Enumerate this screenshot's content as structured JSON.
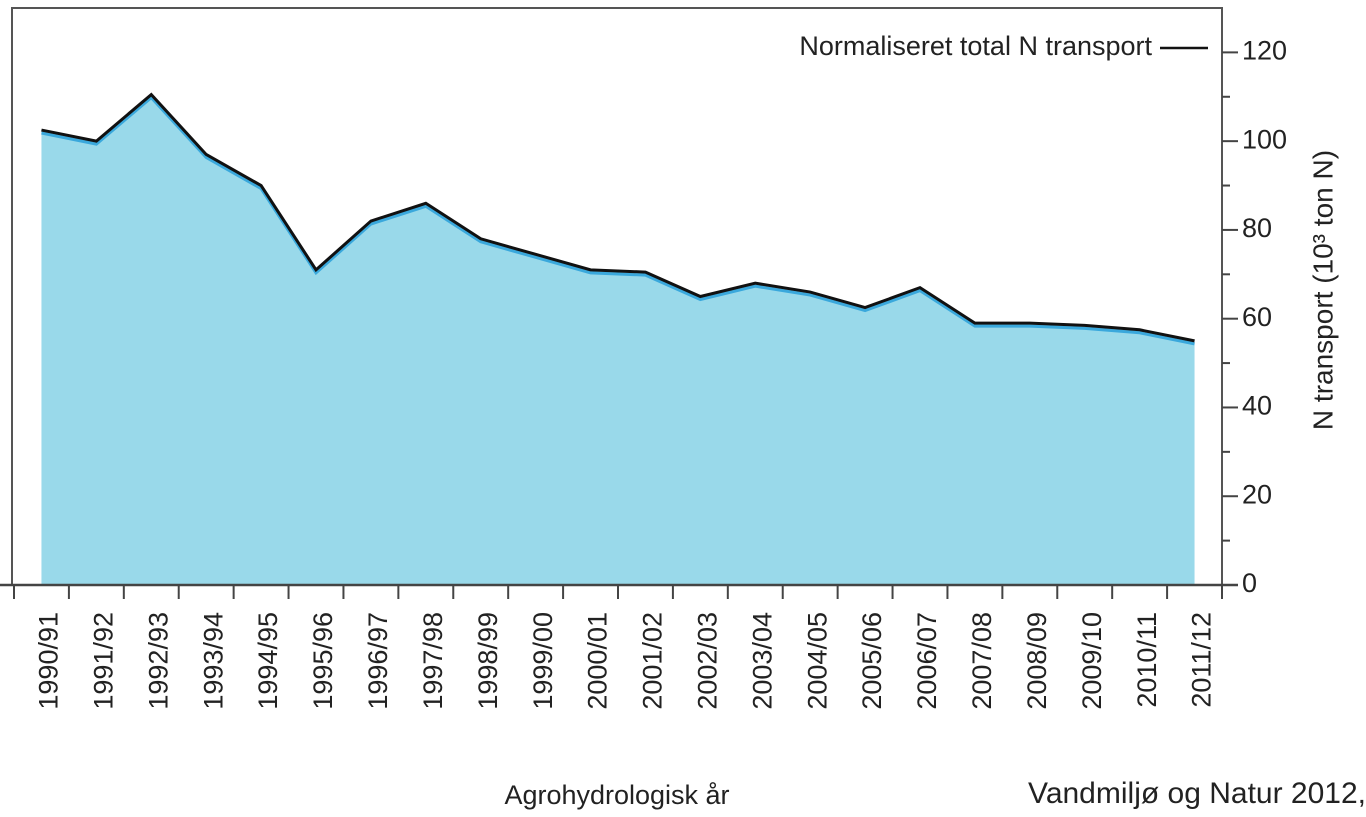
{
  "chart_data": {
    "type": "area",
    "categories": [
      "1990/91",
      "1991/92",
      "1992/93",
      "1993/94",
      "1994/95",
      "1995/96",
      "1996/97",
      "1997/98",
      "1998/99",
      "1999/00",
      "2000/01",
      "2001/02",
      "2002/03",
      "2003/04",
      "2004/05",
      "2005/06",
      "2006/07",
      "2007/08",
      "2008/09",
      "2009/10",
      "2010/11",
      "2011/12"
    ],
    "series": [
      {
        "name": "Normaliseret total N transport",
        "color": "#99d9ea",
        "line_color": "#111111",
        "values": [
          102.5,
          100,
          110.5,
          97,
          90,
          71,
          82,
          86,
          78,
          74.5,
          71,
          70.5,
          65,
          68,
          66,
          62.5,
          67,
          59,
          59,
          58.5,
          57.5,
          55
        ]
      }
    ],
    "ylim": [
      0,
      130
    ],
    "yticks": [
      0,
      20,
      40,
      60,
      80,
      100,
      120
    ],
    "y_label": "N transport (10³ ton N)",
    "x_label": "Agrohydrologisk år",
    "source": "Vandmiljø og Natur 2012,",
    "legend": "top-right"
  }
}
